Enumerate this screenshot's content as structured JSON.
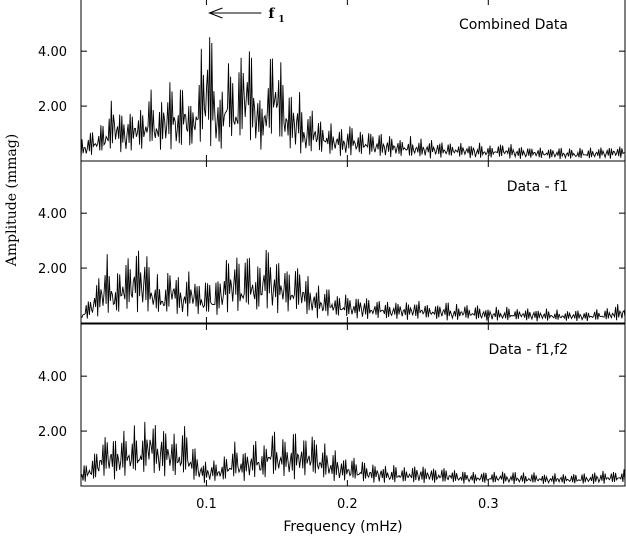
{
  "chart_data": {
    "type": "line",
    "xlabel": "Frequency (mHz)",
    "ylabel": "Amplitude (mmag)",
    "xlim": [
      0.011,
      0.397
    ],
    "x_ticks": [
      0.1,
      0.2,
      0.3
    ],
    "x_tick_labels": [
      "0.1",
      "0.2",
      "0.3"
    ],
    "ylim": [
      0,
      5.9
    ],
    "y_ticks": [
      2.0,
      4.0
    ],
    "y_tick_labels": [
      "2.00",
      "4.00"
    ],
    "grid": false,
    "legend": "none",
    "line_color": "#000000",
    "annotation": {
      "text": "f",
      "subscript": "1",
      "x": 0.1,
      "y": 5.4
    },
    "panels": [
      {
        "title": "Combined Data",
        "x": [
          0.011,
          0.02,
          0.03,
          0.035,
          0.04,
          0.05,
          0.055,
          0.06,
          0.065,
          0.07,
          0.075,
          0.08,
          0.085,
          0.09,
          0.095,
          0.1,
          0.105,
          0.11,
          0.115,
          0.12,
          0.125,
          0.13,
          0.135,
          0.14,
          0.145,
          0.15,
          0.155,
          0.16,
          0.165,
          0.17,
          0.175,
          0.18,
          0.19,
          0.2,
          0.21,
          0.22,
          0.23,
          0.25,
          0.27,
          0.29,
          0.31,
          0.33,
          0.35,
          0.37,
          0.385,
          0.397
        ],
        "values": [
          0.8,
          1.3,
          1.7,
          2.8,
          1.9,
          2.4,
          2.2,
          3.0,
          2.1,
          2.9,
          3.6,
          2.4,
          3.3,
          2.5,
          3.8,
          5.4,
          4.2,
          2.3,
          5.0,
          2.8,
          4.6,
          5.3,
          3.3,
          2.5,
          4.7,
          4.9,
          3.4,
          2.4,
          2.9,
          1.9,
          2.2,
          1.7,
          1.5,
          1.4,
          1.2,
          1.1,
          1.0,
          0.9,
          0.8,
          0.7,
          0.7,
          0.6,
          0.5,
          0.5,
          0.6,
          0.7
        ]
      },
      {
        "title": "Data - f1",
        "x": [
          0.011,
          0.02,
          0.03,
          0.035,
          0.04,
          0.05,
          0.055,
          0.06,
          0.065,
          0.07,
          0.075,
          0.08,
          0.085,
          0.09,
          0.095,
          0.1,
          0.105,
          0.11,
          0.115,
          0.12,
          0.125,
          0.13,
          0.135,
          0.14,
          0.145,
          0.15,
          0.155,
          0.16,
          0.165,
          0.17,
          0.175,
          0.18,
          0.19,
          0.2,
          0.21,
          0.22,
          0.23,
          0.25,
          0.27,
          0.29,
          0.31,
          0.33,
          0.35,
          0.37,
          0.385,
          0.397
        ],
        "values": [
          0.5,
          1.4,
          2.6,
          1.6,
          2.4,
          2.9,
          3.1,
          2.3,
          1.9,
          1.6,
          2.6,
          1.7,
          1.9,
          2.4,
          1.5,
          1.8,
          1.6,
          2.0,
          2.8,
          3.1,
          2.2,
          3.2,
          2.2,
          2.9,
          3.3,
          2.8,
          2.6,
          2.1,
          2.4,
          1.9,
          1.6,
          1.5,
          1.3,
          1.2,
          1.1,
          1.0,
          0.9,
          0.9,
          0.8,
          0.7,
          0.6,
          0.6,
          0.5,
          0.5,
          0.6,
          0.8
        ]
      },
      {
        "title": "Data - f1,f2",
        "x": [
          0.011,
          0.02,
          0.03,
          0.035,
          0.04,
          0.05,
          0.055,
          0.06,
          0.065,
          0.07,
          0.075,
          0.08,
          0.085,
          0.09,
          0.095,
          0.1,
          0.105,
          0.11,
          0.115,
          0.12,
          0.125,
          0.13,
          0.135,
          0.14,
          0.145,
          0.15,
          0.155,
          0.16,
          0.165,
          0.17,
          0.175,
          0.18,
          0.19,
          0.2,
          0.21,
          0.22,
          0.23,
          0.25,
          0.27,
          0.29,
          0.31,
          0.33,
          0.35,
          0.37,
          0.385,
          0.397
        ],
        "values": [
          0.6,
          1.3,
          2.2,
          1.7,
          2.3,
          2.4,
          2.1,
          3.1,
          2.5,
          2.3,
          2.4,
          1.9,
          2.5,
          1.6,
          1.2,
          0.9,
          1.1,
          1.0,
          1.2,
          1.8,
          1.3,
          1.6,
          1.9,
          1.4,
          2.6,
          2.0,
          2.1,
          1.8,
          2.3,
          1.9,
          2.2,
          1.7,
          1.4,
          1.2,
          1.0,
          0.9,
          0.8,
          0.8,
          0.7,
          0.6,
          0.6,
          0.5,
          0.5,
          0.5,
          0.6,
          0.7
        ]
      }
    ]
  }
}
